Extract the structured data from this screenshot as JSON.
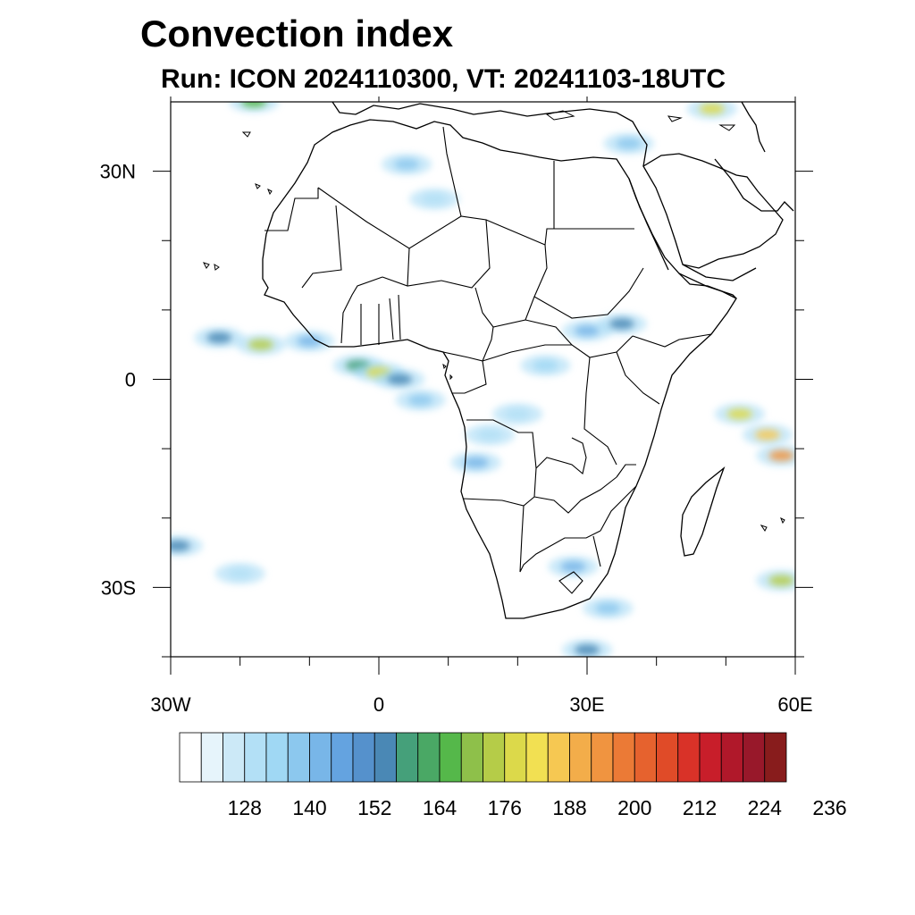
{
  "title": "Convection index",
  "subtitle": "Run: ICON 2024110300,  VT: 20241103-18UTC",
  "map": {
    "projection": "cylindrical equidistant",
    "lon_range": [
      -30,
      60
    ],
    "lat_range": [
      -40,
      40
    ],
    "lon_tick_labels": [
      "30W",
      "0",
      "30E",
      "60E"
    ],
    "lat_tick_labels": [
      "30N",
      "0",
      "30S"
    ],
    "lon_ticks": [
      -30,
      0,
      30,
      60
    ],
    "lat_ticks": [
      30,
      0,
      -30
    ],
    "minor_lon_ticks": [
      -20,
      -10,
      10,
      20,
      40,
      50
    ],
    "minor_lat_ticks": [
      20,
      10,
      -10,
      -20,
      -40
    ]
  },
  "colorbar": {
    "colors": [
      "#ffffff",
      "#e6f4fb",
      "#cce9f7",
      "#b3e0f6",
      "#a0d8f4",
      "#8cc8ee",
      "#78b6e8",
      "#64a3e0",
      "#5591cc",
      "#4a88b5",
      "#45a07a",
      "#4aa865",
      "#55b84a",
      "#8ec04a",
      "#b5cc48",
      "#dcd94a",
      "#f2e052",
      "#f6c852",
      "#f3ad4a",
      "#f09440",
      "#eb7a36",
      "#e6622e",
      "#e04b28",
      "#d93228",
      "#c81e2a",
      "#b0182a",
      "#98182a",
      "#881c1c"
    ],
    "tick_labels": [
      "128",
      "140",
      "152",
      "164",
      "176",
      "188",
      "200",
      "212",
      "224",
      "236"
    ]
  },
  "chart_data": {
    "type": "heatmap",
    "title": "Convection index",
    "subtitle": "Run: ICON 2024110300,  VT: 20241103-18UTC",
    "xlabel": "",
    "ylabel": "",
    "x_range": [
      -30,
      60
    ],
    "y_range": [
      -40,
      40
    ],
    "colorbar_ticks": [
      128,
      140,
      152,
      164,
      176,
      188,
      200,
      212,
      224,
      236
    ],
    "cells": [
      {
        "lon": -23,
        "lat": 6,
        "v": 150
      },
      {
        "lon": -17,
        "lat": 5,
        "v": 170
      },
      {
        "lon": -10,
        "lat": 5.5,
        "v": 140
      },
      {
        "lon": -3,
        "lat": 2,
        "v": 155
      },
      {
        "lon": 0,
        "lat": 1,
        "v": 175
      },
      {
        "lon": 3,
        "lat": 0,
        "v": 150
      },
      {
        "lon": 6,
        "lat": -3,
        "v": 135
      },
      {
        "lon": 14,
        "lat": -12,
        "v": 140
      },
      {
        "lon": 16,
        "lat": -8,
        "v": 128
      },
      {
        "lon": 20,
        "lat": -5,
        "v": 128
      },
      {
        "lon": 24,
        "lat": 2,
        "v": 132
      },
      {
        "lon": 30,
        "lat": 7,
        "v": 140
      },
      {
        "lon": 35,
        "lat": 8,
        "v": 150
      },
      {
        "lon": 4,
        "lat": 31,
        "v": 135
      },
      {
        "lon": 8,
        "lat": 26,
        "v": 128
      },
      {
        "lon": -18,
        "lat": 40,
        "v": 165
      },
      {
        "lon": 48,
        "lat": 39,
        "v": 175
      },
      {
        "lon": 36,
        "lat": 34,
        "v": 135
      },
      {
        "lon": 52,
        "lat": -5,
        "v": 175
      },
      {
        "lon": 56,
        "lat": -8,
        "v": 185
      },
      {
        "lon": 58,
        "lat": -11,
        "v": 190
      },
      {
        "lon": 58,
        "lat": -29,
        "v": 172
      },
      {
        "lon": 28,
        "lat": -27,
        "v": 140
      },
      {
        "lon": 33,
        "lat": -33,
        "v": 135
      },
      {
        "lon": -29,
        "lat": -24,
        "v": 150
      },
      {
        "lon": -20,
        "lat": -28,
        "v": 128
      },
      {
        "lon": 30,
        "lat": -39,
        "v": 150
      }
    ]
  }
}
